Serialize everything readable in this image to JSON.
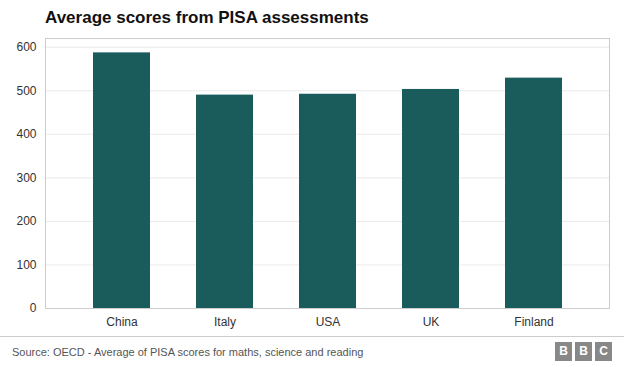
{
  "chart_data": {
    "type": "bar",
    "title": "Average scores from PISA assessments",
    "categories": [
      "China",
      "Italy",
      "USA",
      "UK",
      "Finland"
    ],
    "values": [
      587,
      490,
      492,
      503,
      529
    ],
    "color": "#1a5c5c",
    "ylim": [
      0,
      620
    ],
    "yticks": [
      0,
      100,
      200,
      300,
      400,
      500,
      600
    ],
    "grid": true,
    "source": "Source: OECD - Average of PISA scores for maths, science and reading",
    "logo_letters": [
      "B",
      "B",
      "C"
    ]
  }
}
